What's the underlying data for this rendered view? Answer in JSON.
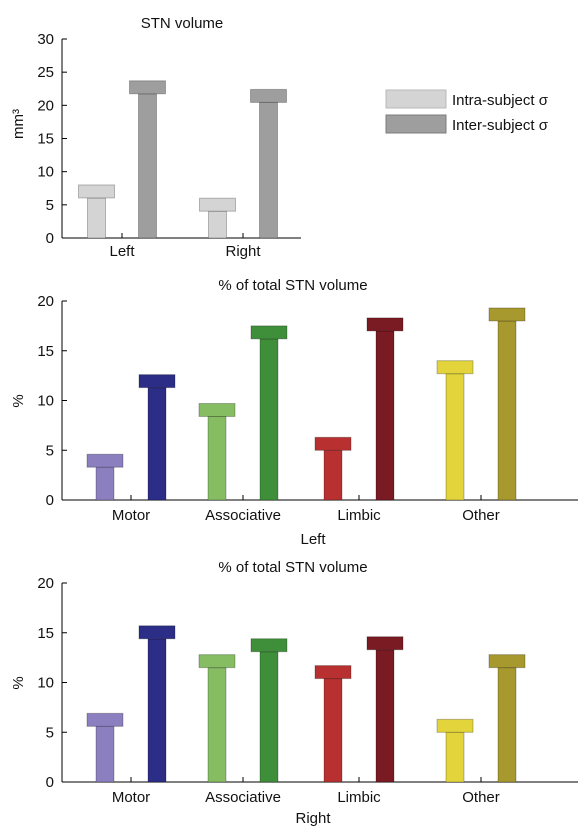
{
  "legend": {
    "items": [
      {
        "label": "Intra-subject σ",
        "color": "#d4d4d4",
        "edge": "#b8b8b8"
      },
      {
        "label": "Inter-subject σ",
        "color": "#9e9e9e",
        "edge": "#7c7c7c"
      }
    ]
  },
  "chart_data": [
    {
      "type": "bar",
      "title": "STN volume",
      "xlabel": "",
      "ylabel": "mm³",
      "ylim": [
        0,
        30
      ],
      "yticks": [
        "0",
        "5",
        "10",
        "15",
        "20",
        "25",
        "30"
      ],
      "categories": [
        "Left",
        "Right"
      ],
      "series": [
        {
          "name": "Intra-subject σ",
          "color": "#d4d4d4",
          "edge": "#b8b8b8",
          "values": [
            8.0,
            6.0
          ]
        },
        {
          "name": "Inter-subject σ",
          "color": "#9e9e9e",
          "edge": "#7c7c7c",
          "values": [
            23.7,
            22.4
          ]
        }
      ]
    },
    {
      "type": "bar",
      "title": "% of total STN volume",
      "xlabel": "Left",
      "ylabel": "%",
      "ylim": [
        0,
        20
      ],
      "yticks": [
        "0",
        "5",
        "10",
        "15",
        "20"
      ],
      "categories": [
        "Motor",
        "Associative",
        "Limbic",
        "Other"
      ],
      "series": [
        {
          "name": "Intra-subject σ",
          "colors": [
            "#8c7fbf",
            "#86bd63",
            "#b83030",
            "#e2d43a"
          ],
          "values": [
            4.6,
            9.7,
            6.3,
            14.0
          ]
        },
        {
          "name": "Inter-subject σ",
          "colors": [
            "#2b2d86",
            "#3f8f3a",
            "#7a1a22",
            "#a8992e"
          ],
          "values": [
            12.6,
            17.5,
            18.3,
            19.3
          ]
        }
      ]
    },
    {
      "type": "bar",
      "title": "% of total STN volume",
      "xlabel": "Right",
      "ylabel": "%",
      "ylim": [
        0,
        20
      ],
      "yticks": [
        "0",
        "5",
        "10",
        "15",
        "20"
      ],
      "categories": [
        "Motor",
        "Associative",
        "Limbic",
        "Other"
      ],
      "series": [
        {
          "name": "Intra-subject σ",
          "colors": [
            "#8c7fbf",
            "#86bd63",
            "#b83030",
            "#e2d43a"
          ],
          "values": [
            6.9,
            12.8,
            11.7,
            6.3
          ]
        },
        {
          "name": "Inter-subject σ",
          "colors": [
            "#2b2d86",
            "#3f8f3a",
            "#7a1a22",
            "#a8992e"
          ],
          "values": [
            15.7,
            14.4,
            14.6,
            12.8
          ]
        }
      ]
    }
  ]
}
